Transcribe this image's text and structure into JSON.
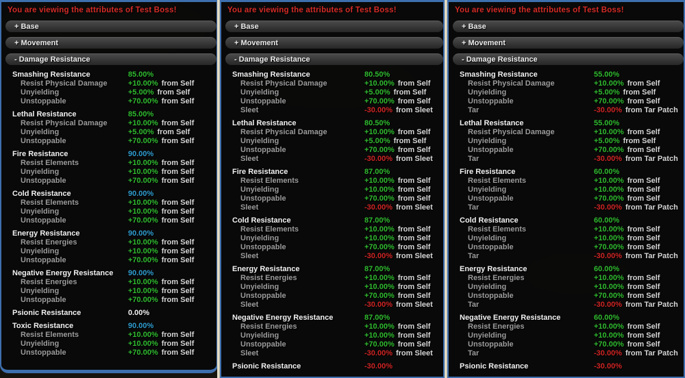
{
  "colors": {
    "green": "#2fbb2f",
    "cyan": "#2f9ccf",
    "red": "#cf2424",
    "white": "#f2f2f2"
  },
  "panels": [
    {
      "title": "You are viewing the attributes of Test Boss!",
      "sections": [
        {
          "label": "+ Base",
          "slug": "base"
        },
        {
          "label": "+ Movement",
          "slug": "movement"
        },
        {
          "label": "- Damage Resistance",
          "slug": "damage-resistance"
        }
      ],
      "stats": [
        {
          "name": "Smashing Resistance",
          "value": "85.00%",
          "color": "green",
          "rows": [
            {
              "label": "Resist Physical Damage",
              "value": "+10.00%",
              "color": "green",
              "source": "from Self"
            },
            {
              "label": "Unyielding",
              "value": "+5.00%",
              "color": "green",
              "source": "from Self"
            },
            {
              "label": "Unstoppable",
              "value": "+70.00%",
              "color": "green",
              "source": "from Self"
            }
          ]
        },
        {
          "name": "Lethal Resistance",
          "value": "85.00%",
          "color": "green",
          "rows": [
            {
              "label": "Resist Physical Damage",
              "value": "+10.00%",
              "color": "green",
              "source": "from Self"
            },
            {
              "label": "Unyielding",
              "value": "+5.00%",
              "color": "green",
              "source": "from Self"
            },
            {
              "label": "Unstoppable",
              "value": "+70.00%",
              "color": "green",
              "source": "from Self"
            }
          ]
        },
        {
          "name": "Fire Resistance",
          "value": "90.00%",
          "color": "cyan",
          "rows": [
            {
              "label": "Resist Elements",
              "value": "+10.00%",
              "color": "green",
              "source": "from Self"
            },
            {
              "label": "Unyielding",
              "value": "+10.00%",
              "color": "green",
              "source": "from Self"
            },
            {
              "label": "Unstoppable",
              "value": "+70.00%",
              "color": "green",
              "source": "from Self"
            }
          ]
        },
        {
          "name": "Cold Resistance",
          "value": "90.00%",
          "color": "cyan",
          "rows": [
            {
              "label": "Resist Elements",
              "value": "+10.00%",
              "color": "green",
              "source": "from Self"
            },
            {
              "label": "Unyielding",
              "value": "+10.00%",
              "color": "green",
              "source": "from Self"
            },
            {
              "label": "Unstoppable",
              "value": "+70.00%",
              "color": "green",
              "source": "from Self"
            }
          ]
        },
        {
          "name": "Energy Resistance",
          "value": "90.00%",
          "color": "cyan",
          "rows": [
            {
              "label": "Resist Energies",
              "value": "+10.00%",
              "color": "green",
              "source": "from Self"
            },
            {
              "label": "Unyielding",
              "value": "+10.00%",
              "color": "green",
              "source": "from Self"
            },
            {
              "label": "Unstoppable",
              "value": "+70.00%",
              "color": "green",
              "source": "from Self"
            }
          ]
        },
        {
          "name": "Negative Energy Resistance",
          "value": "90.00%",
          "color": "cyan",
          "rows": [
            {
              "label": "Resist Energies",
              "value": "+10.00%",
              "color": "green",
              "source": "from Self"
            },
            {
              "label": "Unyielding",
              "value": "+10.00%",
              "color": "green",
              "source": "from Self"
            },
            {
              "label": "Unstoppable",
              "value": "+70.00%",
              "color": "green",
              "source": "from Self"
            }
          ]
        },
        {
          "name": "Psionic Resistance",
          "value": "0.00%",
          "color": "white",
          "rows": []
        },
        {
          "name": "Toxic Resistance",
          "value": "90.00%",
          "color": "cyan",
          "rows": [
            {
              "label": "Resist Elements",
              "value": "+10.00%",
              "color": "green",
              "source": "from Self"
            },
            {
              "label": "Unyielding",
              "value": "+10.00%",
              "color": "green",
              "source": "from Self"
            },
            {
              "label": "Unstoppable",
              "value": "+70.00%",
              "color": "green",
              "source": "from Self"
            }
          ]
        }
      ]
    },
    {
      "title": "You are viewing the attributes of Test Boss!",
      "sections": [
        {
          "label": "+ Base",
          "slug": "base"
        },
        {
          "label": "+ Movement",
          "slug": "movement"
        },
        {
          "label": "- Damage Resistance",
          "slug": "damage-resistance"
        }
      ],
      "stats": [
        {
          "name": "Smashing Resistance",
          "value": "80.50%",
          "color": "green",
          "rows": [
            {
              "label": "Resist Physical Damage",
              "value": "+10.00%",
              "color": "green",
              "source": "from Self"
            },
            {
              "label": "Unyielding",
              "value": "+5.00%",
              "color": "green",
              "source": "from Self"
            },
            {
              "label": "Unstoppable",
              "value": "+70.00%",
              "color": "green",
              "source": "from Self"
            },
            {
              "label": "Sleet",
              "value": "-30.00%",
              "color": "red",
              "source": "from Sleet"
            }
          ]
        },
        {
          "name": "Lethal Resistance",
          "value": "80.50%",
          "color": "green",
          "rows": [
            {
              "label": "Resist Physical Damage",
              "value": "+10.00%",
              "color": "green",
              "source": "from Self"
            },
            {
              "label": "Unyielding",
              "value": "+5.00%",
              "color": "green",
              "source": "from Self"
            },
            {
              "label": "Unstoppable",
              "value": "+70.00%",
              "color": "green",
              "source": "from Self"
            },
            {
              "label": "Sleet",
              "value": "-30.00%",
              "color": "red",
              "source": "from Sleet"
            }
          ]
        },
        {
          "name": "Fire Resistance",
          "value": "87.00%",
          "color": "green",
          "rows": [
            {
              "label": "Resist Elements",
              "value": "+10.00%",
              "color": "green",
              "source": "from Self"
            },
            {
              "label": "Unyielding",
              "value": "+10.00%",
              "color": "green",
              "source": "from Self"
            },
            {
              "label": "Unstoppable",
              "value": "+70.00%",
              "color": "green",
              "source": "from Self"
            },
            {
              "label": "Sleet",
              "value": "-30.00%",
              "color": "red",
              "source": "from Sleet"
            }
          ]
        },
        {
          "name": "Cold Resistance",
          "value": "87.00%",
          "color": "green",
          "rows": [
            {
              "label": "Resist Elements",
              "value": "+10.00%",
              "color": "green",
              "source": "from Self"
            },
            {
              "label": "Unyielding",
              "value": "+10.00%",
              "color": "green",
              "source": "from Self"
            },
            {
              "label": "Unstoppable",
              "value": "+70.00%",
              "color": "green",
              "source": "from Self"
            },
            {
              "label": "Sleet",
              "value": "-30.00%",
              "color": "red",
              "source": "from Sleet"
            }
          ]
        },
        {
          "name": "Energy Resistance",
          "value": "87.00%",
          "color": "green",
          "rows": [
            {
              "label": "Resist Energies",
              "value": "+10.00%",
              "color": "green",
              "source": "from Self"
            },
            {
              "label": "Unyielding",
              "value": "+10.00%",
              "color": "green",
              "source": "from Self"
            },
            {
              "label": "Unstoppable",
              "value": "+70.00%",
              "color": "green",
              "source": "from Self"
            },
            {
              "label": "Sleet",
              "value": "-30.00%",
              "color": "red",
              "source": "from Sleet"
            }
          ]
        },
        {
          "name": "Negative Energy Resistance",
          "value": "87.00%",
          "color": "green",
          "rows": [
            {
              "label": "Resist Energies",
              "value": "+10.00%",
              "color": "green",
              "source": "from Self"
            },
            {
              "label": "Unyielding",
              "value": "+10.00%",
              "color": "green",
              "source": "from Self"
            },
            {
              "label": "Unstoppable",
              "value": "+70.00%",
              "color": "green",
              "source": "from Self"
            },
            {
              "label": "Sleet",
              "value": "-30.00%",
              "color": "red",
              "source": "from Sleet"
            }
          ]
        },
        {
          "name": "Psionic Resistance",
          "value": "-30.00%",
          "color": "red",
          "rows": []
        }
      ]
    },
    {
      "title": "You are viewing the attributes of Test Boss!",
      "sections": [
        {
          "label": "+ Base",
          "slug": "base"
        },
        {
          "label": "+ Movement",
          "slug": "movement"
        },
        {
          "label": "- Damage Resistance",
          "slug": "damage-resistance"
        }
      ],
      "stats": [
        {
          "name": "Smashing Resistance",
          "value": "55.00%",
          "color": "green",
          "rows": [
            {
              "label": "Resist Physical Damage",
              "value": "+10.00%",
              "color": "green",
              "source": "from Self"
            },
            {
              "label": "Unyielding",
              "value": "+5.00%",
              "color": "green",
              "source": "from Self"
            },
            {
              "label": "Unstoppable",
              "value": "+70.00%",
              "color": "green",
              "source": "from Self"
            },
            {
              "label": "Tar",
              "value": "-30.00%",
              "color": "red",
              "source": "from Tar Patch"
            }
          ]
        },
        {
          "name": "Lethal Resistance",
          "value": "55.00%",
          "color": "green",
          "rows": [
            {
              "label": "Resist Physical Damage",
              "value": "+10.00%",
              "color": "green",
              "source": "from Self"
            },
            {
              "label": "Unyielding",
              "value": "+5.00%",
              "color": "green",
              "source": "from Self"
            },
            {
              "label": "Unstoppable",
              "value": "+70.00%",
              "color": "green",
              "source": "from Self"
            },
            {
              "label": "Tar",
              "value": "-30.00%",
              "color": "red",
              "source": "from Tar Patch"
            }
          ]
        },
        {
          "name": "Fire Resistance",
          "value": "60.00%",
          "color": "green",
          "rows": [
            {
              "label": "Resist Elements",
              "value": "+10.00%",
              "color": "green",
              "source": "from Self"
            },
            {
              "label": "Unyielding",
              "value": "+10.00%",
              "color": "green",
              "source": "from Self"
            },
            {
              "label": "Unstoppable",
              "value": "+70.00%",
              "color": "green",
              "source": "from Self"
            },
            {
              "label": "Tar",
              "value": "-30.00%",
              "color": "red",
              "source": "from Tar Patch"
            }
          ]
        },
        {
          "name": "Cold Resistance",
          "value": "60.00%",
          "color": "green",
          "rows": [
            {
              "label": "Resist Elements",
              "value": "+10.00%",
              "color": "green",
              "source": "from Self"
            },
            {
              "label": "Unyielding",
              "value": "+10.00%",
              "color": "green",
              "source": "from Self"
            },
            {
              "label": "Unstoppable",
              "value": "+70.00%",
              "color": "green",
              "source": "from Self"
            },
            {
              "label": "Tar",
              "value": "-30.00%",
              "color": "red",
              "source": "from Tar Patch"
            }
          ]
        },
        {
          "name": "Energy Resistance",
          "value": "60.00%",
          "color": "green",
          "rows": [
            {
              "label": "Resist Energies",
              "value": "+10.00%",
              "color": "green",
              "source": "from Self"
            },
            {
              "label": "Unyielding",
              "value": "+10.00%",
              "color": "green",
              "source": "from Self"
            },
            {
              "label": "Unstoppable",
              "value": "+70.00%",
              "color": "green",
              "source": "from Self"
            },
            {
              "label": "Tar",
              "value": "-30.00%",
              "color": "red",
              "source": "from Tar Patch"
            }
          ]
        },
        {
          "name": "Negative Energy Resistance",
          "value": "60.00%",
          "color": "green",
          "rows": [
            {
              "label": "Resist Energies",
              "value": "+10.00%",
              "color": "green",
              "source": "from Self"
            },
            {
              "label": "Unyielding",
              "value": "+10.00%",
              "color": "green",
              "source": "from Self"
            },
            {
              "label": "Unstoppable",
              "value": "+70.00%",
              "color": "green",
              "source": "from Self"
            },
            {
              "label": "Tar",
              "value": "-30.00%",
              "color": "red",
              "source": "from Tar Patch"
            }
          ]
        },
        {
          "name": "Psionic Resistance",
          "value": "-30.00%",
          "color": "red",
          "rows": []
        }
      ]
    }
  ]
}
